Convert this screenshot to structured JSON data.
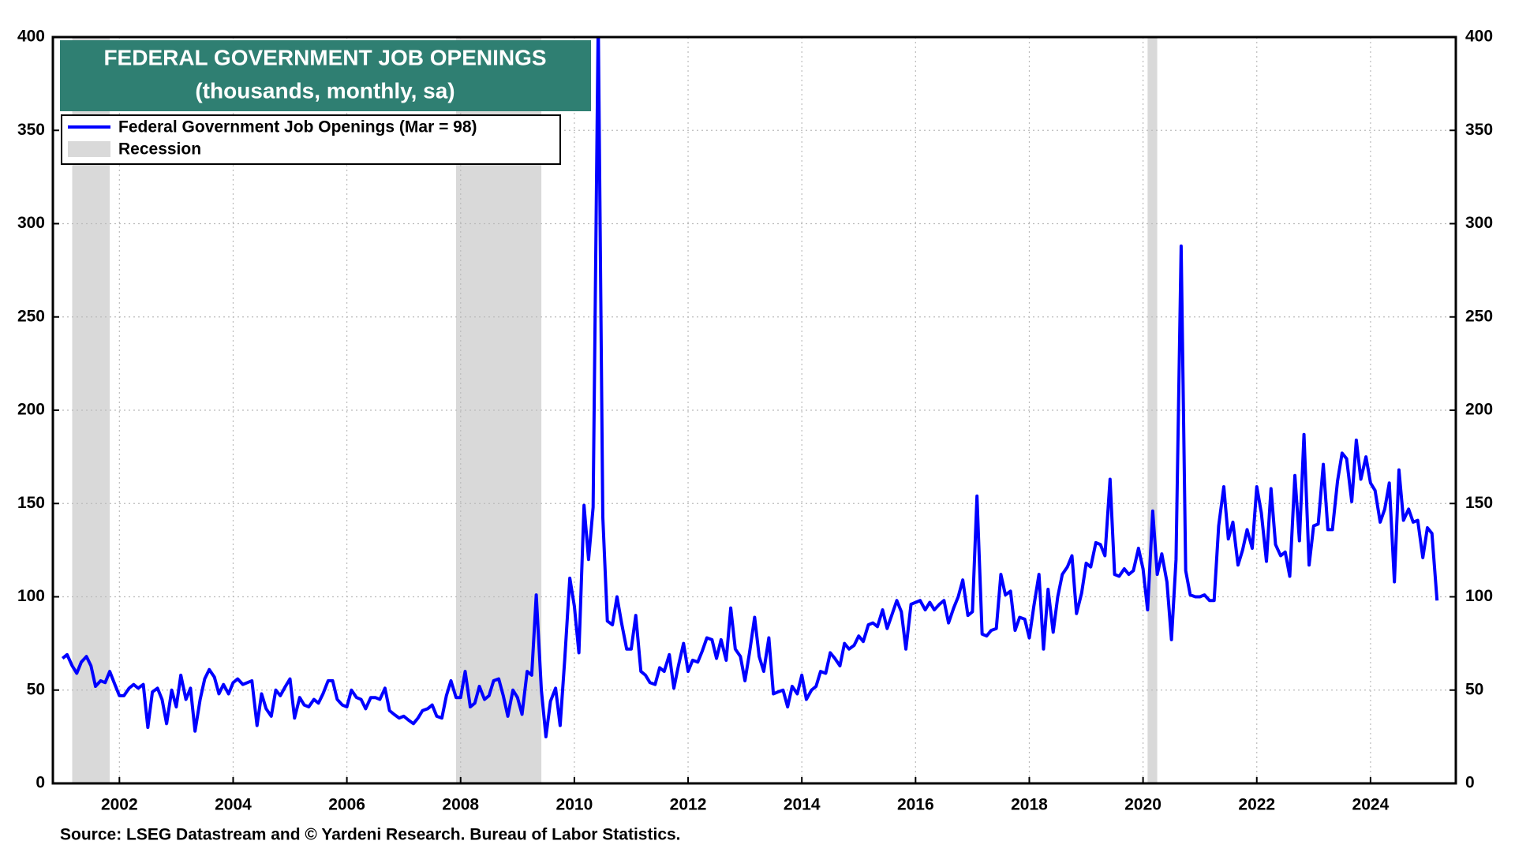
{
  "chart_data": {
    "type": "line",
    "title": "FEDERAL GOVERNMENT JOB OPENINGS",
    "subtitle": "(thousands, monthly, sa)",
    "source": "Source: LSEG Datastream and © Yardeni Research. Bureau of Labor Statistics.",
    "recession_label": "Recession",
    "recession_color": "#d9d9d9",
    "recessions": [
      [
        2001.17,
        2001.83
      ],
      [
        2007.92,
        2009.42
      ],
      [
        2020.08,
        2020.25
      ]
    ],
    "xlim": [
      2000.83,
      2025.5
    ],
    "xticks": [
      2002,
      2004,
      2006,
      2008,
      2010,
      2012,
      2014,
      2016,
      2018,
      2020,
      2022,
      2024
    ],
    "ylim": [
      0,
      400
    ],
    "yticks": [
      0,
      50,
      100,
      150,
      200,
      250,
      300,
      350,
      400
    ],
    "grid": true,
    "x": [
      2001.0,
      2001.08,
      2001.17,
      2001.25,
      2001.33,
      2001.42,
      2001.5,
      2001.58,
      2001.67,
      2001.75,
      2001.83,
      2001.92,
      2002.0,
      2002.08,
      2002.17,
      2002.25,
      2002.33,
      2002.42,
      2002.5,
      2002.58,
      2002.67,
      2002.75,
      2002.83,
      2002.92,
      2003.0,
      2003.08,
      2003.17,
      2003.25,
      2003.33,
      2003.42,
      2003.5,
      2003.58,
      2003.67,
      2003.75,
      2003.83,
      2003.92,
      2004.0,
      2004.08,
      2004.17,
      2004.25,
      2004.33,
      2004.42,
      2004.5,
      2004.58,
      2004.67,
      2004.75,
      2004.83,
      2004.92,
      2005.0,
      2005.08,
      2005.17,
      2005.25,
      2005.33,
      2005.42,
      2005.5,
      2005.58,
      2005.67,
      2005.75,
      2005.83,
      2005.92,
      2006.0,
      2006.08,
      2006.17,
      2006.25,
      2006.33,
      2006.42,
      2006.5,
      2006.58,
      2006.67,
      2006.75,
      2006.83,
      2006.92,
      2007.0,
      2007.08,
      2007.17,
      2007.25,
      2007.33,
      2007.42,
      2007.5,
      2007.58,
      2007.67,
      2007.75,
      2007.83,
      2007.92,
      2008.0,
      2008.08,
      2008.17,
      2008.25,
      2008.33,
      2008.42,
      2008.5,
      2008.58,
      2008.67,
      2008.75,
      2008.83,
      2008.92,
      2009.0,
      2009.08,
      2009.17,
      2009.25,
      2009.33,
      2009.42,
      2009.5,
      2009.58,
      2009.67,
      2009.75,
      2009.83,
      2009.92,
      2010.0,
      2010.08,
      2010.17,
      2010.25,
      2010.33,
      2010.42,
      2010.5,
      2010.58,
      2010.67,
      2010.75,
      2010.83,
      2010.92,
      2011.0,
      2011.08,
      2011.17,
      2011.25,
      2011.33,
      2011.42,
      2011.5,
      2011.58,
      2011.67,
      2011.75,
      2011.83,
      2011.92,
      2012.0,
      2012.08,
      2012.17,
      2012.25,
      2012.33,
      2012.42,
      2012.5,
      2012.58,
      2012.67,
      2012.75,
      2012.83,
      2012.92,
      2013.0,
      2013.08,
      2013.17,
      2013.25,
      2013.33,
      2013.42,
      2013.5,
      2013.58,
      2013.67,
      2013.75,
      2013.83,
      2013.92,
      2014.0,
      2014.08,
      2014.17,
      2014.25,
      2014.33,
      2014.42,
      2014.5,
      2014.58,
      2014.67,
      2014.75,
      2014.83,
      2014.92,
      2015.0,
      2015.08,
      2015.17,
      2015.25,
      2015.33,
      2015.42,
      2015.5,
      2015.58,
      2015.67,
      2015.75,
      2015.83,
      2015.92,
      2016.0,
      2016.08,
      2016.17,
      2016.25,
      2016.33,
      2016.42,
      2016.5,
      2016.58,
      2016.67,
      2016.75,
      2016.83,
      2016.92,
      2017.0,
      2017.08,
      2017.17,
      2017.25,
      2017.33,
      2017.42,
      2017.5,
      2017.58,
      2017.67,
      2017.75,
      2017.83,
      2017.92,
      2018.0,
      2018.08,
      2018.17,
      2018.25,
      2018.33,
      2018.42,
      2018.5,
      2018.58,
      2018.67,
      2018.75,
      2018.83,
      2018.92,
      2019.0,
      2019.08,
      2019.17,
      2019.25,
      2019.33,
      2019.42,
      2019.5,
      2019.58,
      2019.67,
      2019.75,
      2019.83,
      2019.92,
      2020.0,
      2020.08,
      2020.17,
      2020.25,
      2020.33,
      2020.42,
      2020.5,
      2020.58,
      2020.67,
      2020.75,
      2020.83,
      2020.92,
      2021.0,
      2021.08,
      2021.17,
      2021.25,
      2021.33,
      2021.42,
      2021.5,
      2021.58,
      2021.67,
      2021.75,
      2021.83,
      2021.92,
      2022.0,
      2022.08,
      2022.17,
      2022.25,
      2022.33,
      2022.42,
      2022.5,
      2022.58,
      2022.67,
      2022.75,
      2022.83,
      2022.92,
      2023.0,
      2023.08,
      2023.17,
      2023.25,
      2023.33,
      2023.42,
      2023.5,
      2023.58,
      2023.67,
      2023.75,
      2023.83,
      2023.92,
      2024.0,
      2024.08,
      2024.17,
      2024.25,
      2024.33,
      2024.42,
      2024.5,
      2024.58,
      2024.67,
      2024.75,
      2024.83,
      2024.92,
      2025.0,
      2025.08,
      2025.17
    ],
    "series": [
      {
        "name": "Federal Government Job Openings (Mar = 98)",
        "color": "#0000ff",
        "values": [
          67,
          69,
          63,
          59,
          65,
          68,
          63,
          52,
          55,
          54,
          60,
          53,
          47,
          47,
          51,
          53,
          51,
          53,
          30,
          49,
          51,
          45,
          32,
          50,
          41,
          58,
          45,
          51,
          28,
          45,
          56,
          61,
          57,
          48,
          53,
          48,
          54,
          56,
          53,
          54,
          55,
          31,
          48,
          40,
          36,
          50,
          47,
          52,
          56,
          35,
          46,
          42,
          41,
          45,
          43,
          48,
          55,
          55,
          45,
          42,
          41,
          50,
          46,
          45,
          40,
          46,
          46,
          45,
          51,
          39,
          37,
          35,
          36,
          34,
          32,
          35,
          39,
          40,
          42,
          36,
          35,
          47,
          55,
          46,
          46,
          60,
          41,
          43,
          52,
          45,
          47,
          55,
          56,
          47,
          36,
          50,
          46,
          37,
          60,
          58,
          101,
          50,
          25,
          44,
          51,
          31,
          66,
          110,
          95,
          70,
          149,
          120,
          148,
          410,
          143,
          87,
          85,
          100,
          86,
          72,
          72,
          90,
          60,
          58,
          54,
          53,
          62,
          60,
          69,
          51,
          63,
          75,
          60,
          66,
          65,
          71,
          78,
          77,
          67,
          77,
          66,
          94,
          72,
          68,
          55,
          70,
          89,
          68,
          60,
          78,
          48,
          49,
          50,
          41,
          52,
          48,
          58,
          45,
          50,
          52,
          60,
          59,
          70,
          67,
          63,
          75,
          72,
          74,
          79,
          76,
          85,
          86,
          84,
          93,
          83,
          90,
          98,
          92,
          72,
          96,
          97,
          98,
          93,
          97,
          93,
          96,
          98,
          86,
          94,
          100,
          109,
          90,
          92,
          154,
          80,
          79,
          82,
          83,
          112,
          101,
          103,
          82,
          89,
          88,
          78,
          95,
          112,
          72,
          104,
          81,
          100,
          112,
          116,
          122,
          91,
          102,
          118,
          116,
          129,
          128,
          122,
          163,
          112,
          111,
          115,
          112,
          114,
          126,
          115,
          93,
          146,
          112,
          123,
          108,
          77,
          120,
          288,
          114,
          101,
          100,
          100,
          101,
          98,
          98,
          138,
          159,
          131,
          140,
          117,
          125,
          136,
          126,
          159,
          145,
          119,
          158,
          128,
          122,
          124,
          111,
          165,
          130,
          187,
          117,
          138,
          139,
          171,
          136,
          136,
          162,
          177,
          174,
          151,
          184,
          163,
          175,
          161,
          157,
          140,
          147,
          161,
          108,
          168,
          141,
          147,
          140,
          141,
          121,
          137,
          134,
          98
        ]
      }
    ]
  }
}
